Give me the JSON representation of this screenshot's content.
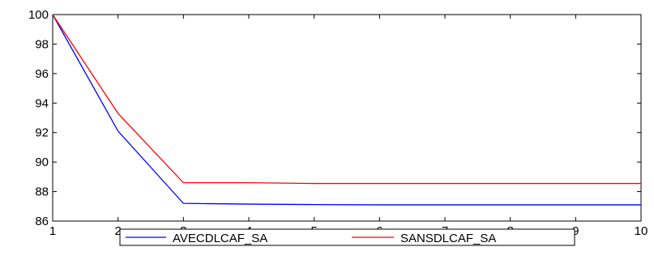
{
  "chart_data": {
    "type": "line",
    "title": "",
    "xlabel": "",
    "ylabel": "",
    "x": [
      1,
      2,
      3,
      4,
      5,
      6,
      7,
      8,
      9,
      10
    ],
    "xlim": [
      1,
      10
    ],
    "ylim": [
      86,
      100
    ],
    "x_ticks": [
      "1",
      "2",
      "3",
      "4",
      "5",
      "6",
      "7",
      "8",
      "9",
      "10"
    ],
    "y_ticks": [
      "86",
      "88",
      "90",
      "92",
      "94",
      "96",
      "98",
      "100"
    ],
    "grid": false,
    "legend_position": "bottom",
    "series": [
      {
        "name": "AVECDLCAF_SA",
        "color": "#0000ff",
        "values": [
          100,
          92.1,
          87.2,
          87.15,
          87.12,
          87.1,
          87.1,
          87.1,
          87.1,
          87.1
        ]
      },
      {
        "name": "SANSDLCAF_SA",
        "color": "#ff0000",
        "values": [
          100,
          93.3,
          88.6,
          88.6,
          88.55,
          88.55,
          88.55,
          88.55,
          88.55,
          88.55
        ]
      }
    ]
  }
}
